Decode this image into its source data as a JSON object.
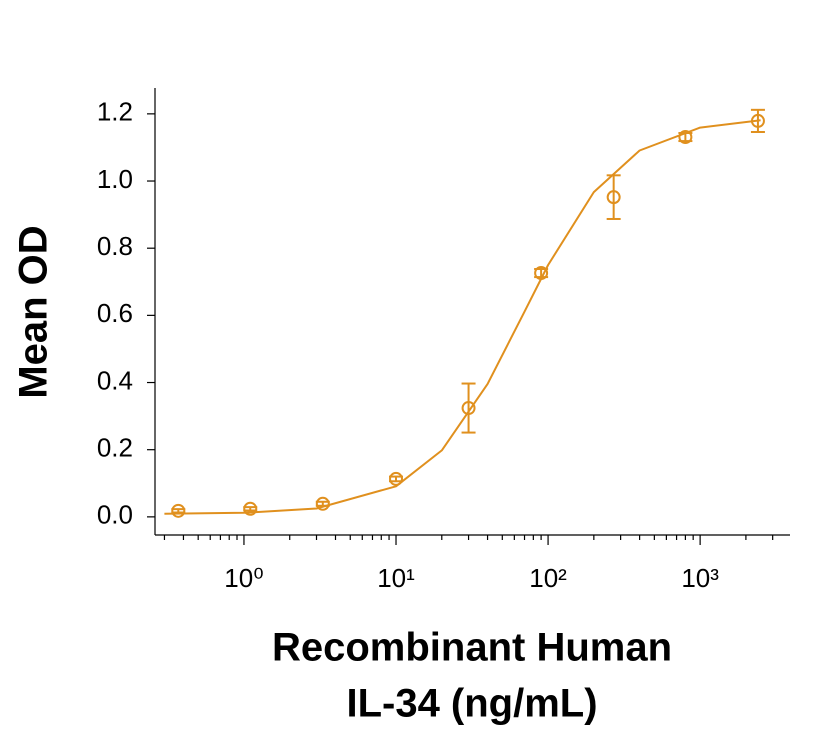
{
  "chart_data": {
    "type": "scatter",
    "y_label": "Mean OD",
    "x_label": [
      "Recombinant Human",
      "IL-34 (ng/mL)"
    ],
    "x_scale": "log",
    "color": "#e0901e",
    "x": [
      0.37,
      1.1,
      3.3,
      10,
      30,
      90,
      270,
      800,
      2400
    ],
    "values": [
      0.018,
      0.024,
      0.039,
      0.113,
      0.324,
      0.726,
      0.952,
      1.131,
      1.179
    ],
    "errors": [
      0.005,
      0.005,
      0.006,
      0.007,
      0.073,
      0.012,
      0.065,
      0.012,
      0.033
    ],
    "fit": {
      "x": [
        0.3,
        1,
        3,
        10,
        20,
        40,
        70,
        100,
        200,
        400,
        1000,
        2500
      ],
      "values": [
        0.009,
        0.012,
        0.025,
        0.091,
        0.198,
        0.396,
        0.611,
        0.75,
        0.967,
        1.091,
        1.159,
        1.181
      ]
    },
    "xlim": [
      0.26,
      3900
    ],
    "xticks": [
      {
        "value": 1,
        "label": "10⁰"
      },
      {
        "value": 10,
        "label": "10¹"
      },
      {
        "value": 100,
        "label": "10²"
      },
      {
        "value": 1000,
        "label": "10³"
      }
    ],
    "xminorticks": [
      0.3,
      0.4,
      0.5,
      0.6,
      0.7,
      0.8,
      0.9,
      2,
      3,
      4,
      5,
      6,
      7,
      8,
      9,
      20,
      30,
      40,
      50,
      60,
      70,
      80,
      90,
      200,
      300,
      400,
      500,
      600,
      700,
      800,
      900,
      2000,
      3000
    ],
    "ylim": [
      -0.054,
      1.277
    ],
    "yticks": [
      {
        "value": 0,
        "label": "0.0"
      },
      0.2,
      0.4,
      0.6,
      0.8,
      {
        "value": 1,
        "label": "1.0"
      },
      1.2
    ]
  }
}
